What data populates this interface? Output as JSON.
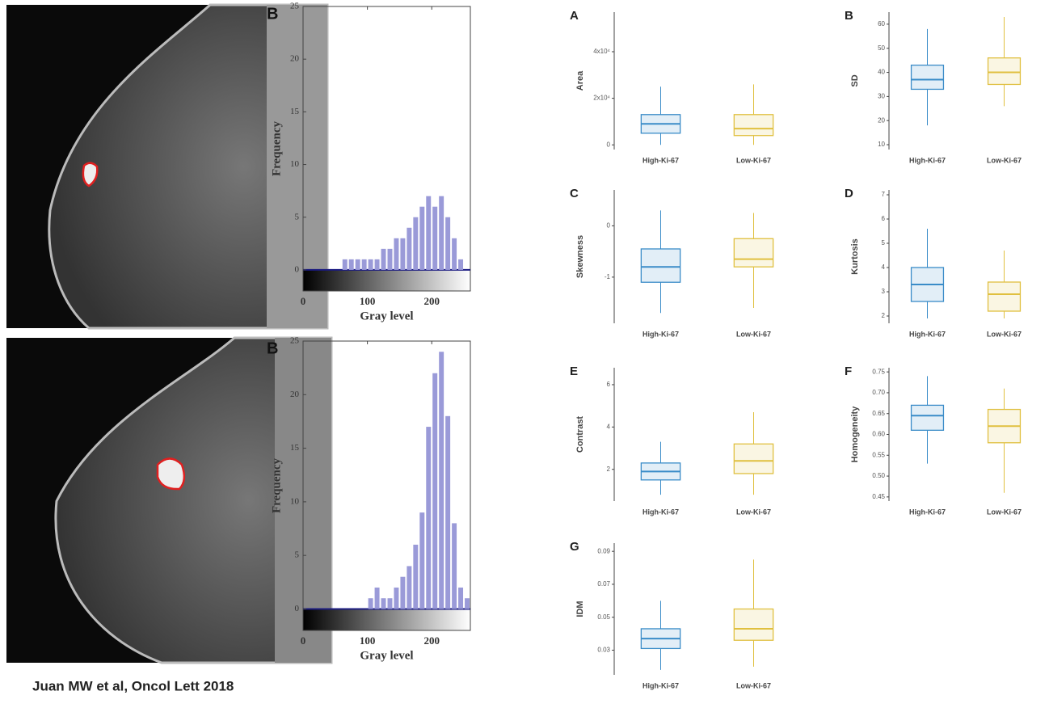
{
  "citation": "Juan MW et al, Oncol Lett 2018",
  "chart_data": [
    {
      "type": "histogram",
      "title": "B",
      "xlabel": "Gray level",
      "ylabel": "Frequency",
      "color": "#9a9ad8",
      "bins": [
        0,
        10,
        20,
        30,
        40,
        50,
        60,
        70,
        80,
        90,
        100,
        110,
        120,
        130,
        140,
        150,
        160,
        170,
        180,
        190,
        200,
        210,
        220,
        230,
        240,
        250,
        260
      ],
      "counts": [
        0,
        0,
        0,
        0,
        0,
        0,
        1,
        1,
        1,
        1,
        1,
        1,
        2,
        2,
        3,
        3,
        4,
        5,
        6,
        7,
        6,
        7,
        5,
        3,
        1,
        0
      ],
      "xlim": [
        0,
        260
      ],
      "xticks": [
        0,
        100,
        200
      ],
      "ylim": [
        -2,
        25
      ],
      "yticks": [
        0,
        5,
        10,
        15,
        20,
        25
      ]
    },
    {
      "type": "histogram",
      "title": "B",
      "xlabel": "Gray level",
      "ylabel": "Frequency",
      "color": "#9a9ad8",
      "bins": [
        0,
        10,
        20,
        30,
        40,
        50,
        60,
        70,
        80,
        90,
        100,
        110,
        120,
        130,
        140,
        150,
        160,
        170,
        180,
        190,
        200,
        210,
        220,
        230,
        240,
        250,
        260
      ],
      "counts": [
        0,
        0,
        0,
        0,
        0,
        0,
        0,
        0,
        0,
        0,
        1,
        2,
        1,
        1,
        2,
        3,
        4,
        6,
        9,
        17,
        22,
        24,
        18,
        8,
        2,
        1
      ],
      "xlim": [
        0,
        260
      ],
      "xticks": [
        0,
        100,
        200
      ],
      "ylim": [
        -2,
        25
      ],
      "yticks": [
        0,
        5,
        10,
        15,
        20,
        25
      ]
    },
    {
      "type": "box",
      "title": "A",
      "ylabel": "Area",
      "categories": [
        "High-Ki-67",
        "Low-Ki-67"
      ],
      "colors": [
        "#3a8cc8",
        "#e0c040"
      ],
      "boxes": [
        {
          "whislo": 0,
          "q1": 5000,
          "med": 9000,
          "q3": 13000,
          "whishi": 25000
        },
        {
          "whislo": 0,
          "q1": 4000,
          "med": 7000,
          "q3": 13000,
          "whishi": 26000
        }
      ],
      "ylim": [
        -2000,
        57000
      ],
      "yticks": [
        0,
        {
          "value": 20000,
          "label": "2x10⁴"
        },
        {
          "value": 40000,
          "label": "4x10⁴"
        }
      ]
    },
    {
      "type": "box",
      "title": "B",
      "ylabel": "SD",
      "categories": [
        "High-Ki-67",
        "Low-Ki-67"
      ],
      "colors": [
        "#3a8cc8",
        "#e0c040"
      ],
      "boxes": [
        {
          "whislo": 18,
          "q1": 33,
          "med": 37,
          "q3": 43,
          "whishi": 58
        },
        {
          "whislo": 26,
          "q1": 35,
          "med": 40,
          "q3": 46,
          "whishi": 63
        }
      ],
      "ylim": [
        8,
        65
      ],
      "yticks": [
        10,
        20,
        30,
        40,
        50,
        60
      ]
    },
    {
      "type": "box",
      "title": "C",
      "ylabel": "Skewness",
      "categories": [
        "High-Ki-67",
        "Low-Ki-67"
      ],
      "colors": [
        "#3a8cc8",
        "#e0c040"
      ],
      "boxes": [
        {
          "whislo": -1.7,
          "q1": -1.1,
          "med": -0.8,
          "q3": -0.45,
          "whishi": 0.3
        },
        {
          "whislo": -1.6,
          "q1": -0.8,
          "med": -0.65,
          "q3": -0.25,
          "whishi": 0.25
        }
      ],
      "ylim": [
        -1.9,
        0.7
      ],
      "yticks": [
        -1,
        0
      ]
    },
    {
      "type": "box",
      "title": "D",
      "ylabel": "Kurtosis",
      "categories": [
        "High-Ki-67",
        "Low-Ki-67"
      ],
      "colors": [
        "#3a8cc8",
        "#e0c040"
      ],
      "boxes": [
        {
          "whislo": 1.9,
          "q1": 2.6,
          "med": 3.3,
          "q3": 4.0,
          "whishi": 5.6
        },
        {
          "whislo": 1.9,
          "q1": 2.2,
          "med": 2.9,
          "q3": 3.4,
          "whishi": 4.7
        }
      ],
      "ylim": [
        1.7,
        7.2
      ],
      "yticks": [
        2,
        3,
        4,
        5,
        6,
        7
      ]
    },
    {
      "type": "box",
      "title": "E",
      "ylabel": "Contrast",
      "categories": [
        "High-Ki-67",
        "Low-Ki-67"
      ],
      "colors": [
        "#3a8cc8",
        "#e0c040"
      ],
      "boxes": [
        {
          "whislo": 0.8,
          "q1": 1.5,
          "med": 1.9,
          "q3": 2.3,
          "whishi": 3.3
        },
        {
          "whislo": 0.8,
          "q1": 1.8,
          "med": 2.4,
          "q3": 3.2,
          "whishi": 4.7
        }
      ],
      "ylim": [
        0.5,
        6.8
      ],
      "yticks": [
        2,
        4,
        6
      ]
    },
    {
      "type": "box",
      "title": "F",
      "ylabel": "Homogeneity",
      "categories": [
        "High-Ki-67",
        "Low-Ki-67"
      ],
      "colors": [
        "#3a8cc8",
        "#e0c040"
      ],
      "boxes": [
        {
          "whislo": 0.53,
          "q1": 0.61,
          "med": 0.645,
          "q3": 0.67,
          "whishi": 0.74
        },
        {
          "whislo": 0.46,
          "q1": 0.58,
          "med": 0.62,
          "q3": 0.66,
          "whishi": 0.71
        }
      ],
      "ylim": [
        0.44,
        0.76
      ],
      "yticks": [
        0.45,
        {
          "value": 0.5,
          "label": "0.50"
        },
        0.55,
        {
          "value": 0.6,
          "label": "0.60"
        },
        0.65,
        {
          "value": 0.7,
          "label": "0.70"
        },
        0.75
      ]
    },
    {
      "type": "box",
      "title": "G",
      "ylabel": "IDM",
      "categories": [
        "High-Ki-67",
        "Low-Ki-67"
      ],
      "colors": [
        "#3a8cc8",
        "#e0c040"
      ],
      "boxes": [
        {
          "whislo": 0.018,
          "q1": 0.031,
          "med": 0.037,
          "q3": 0.043,
          "whishi": 0.06
        },
        {
          "whislo": 0.02,
          "q1": 0.036,
          "med": 0.043,
          "q3": 0.055,
          "whishi": 0.085
        }
      ],
      "ylim": [
        0.015,
        0.095
      ],
      "yticks": [
        0.03,
        0.05,
        0.07,
        0.09
      ]
    }
  ]
}
